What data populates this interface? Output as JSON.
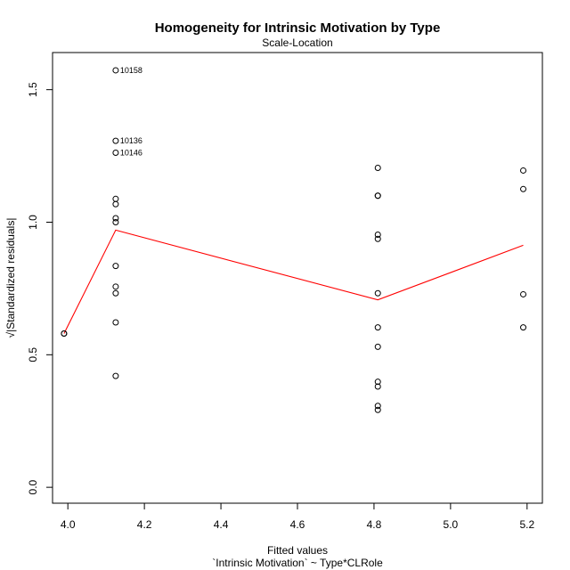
{
  "chart_data": {
    "type": "scatter",
    "title": "Homogeneity for Intrinsic Motivation by Type",
    "subtitle": "Scale-Location",
    "xlabel": "Fitted values",
    "xlabel2": "`Intrinsic Motivation` ~ Type*CLRole",
    "ylabel": "√|Standardized residuals|",
    "xlim": [
      3.96,
      5.24
    ],
    "ylim": [
      -0.06,
      1.64
    ],
    "xticks": [
      "4.0",
      "4.2",
      "4.4",
      "4.6",
      "4.8",
      "5.0",
      "5.2"
    ],
    "yticks": [
      "0.0",
      "0.5",
      "1.0",
      "1.5"
    ],
    "grid": false,
    "colors": {
      "points": "#000000",
      "smooth": "#ff0000"
    },
    "points": [
      {
        "x": 3.99,
        "y": 0.58
      },
      {
        "x": 3.99,
        "y": 0.58
      },
      {
        "x": 4.125,
        "y": 1.573,
        "label": "10158"
      },
      {
        "x": 4.125,
        "y": 1.307,
        "label": "10136"
      },
      {
        "x": 4.125,
        "y": 1.262,
        "label": "10146"
      },
      {
        "x": 4.125,
        "y": 1.088
      },
      {
        "x": 4.125,
        "y": 1.068
      },
      {
        "x": 4.125,
        "y": 1.015
      },
      {
        "x": 4.125,
        "y": 1.0
      },
      {
        "x": 4.125,
        "y": 0.835
      },
      {
        "x": 4.125,
        "y": 0.757
      },
      {
        "x": 4.125,
        "y": 0.732
      },
      {
        "x": 4.125,
        "y": 0.622
      },
      {
        "x": 4.125,
        "y": 0.42
      },
      {
        "x": 4.81,
        "y": 1.205
      },
      {
        "x": 4.81,
        "y": 1.1
      },
      {
        "x": 4.81,
        "y": 1.1
      },
      {
        "x": 4.81,
        "y": 0.953
      },
      {
        "x": 4.81,
        "y": 0.937
      },
      {
        "x": 4.81,
        "y": 0.732
      },
      {
        "x": 4.81,
        "y": 0.603
      },
      {
        "x": 4.81,
        "y": 0.53
      },
      {
        "x": 4.81,
        "y": 0.398
      },
      {
        "x": 4.81,
        "y": 0.38
      },
      {
        "x": 4.81,
        "y": 0.307
      },
      {
        "x": 4.81,
        "y": 0.292
      },
      {
        "x": 5.19,
        "y": 1.195
      },
      {
        "x": 5.19,
        "y": 1.125
      },
      {
        "x": 5.19,
        "y": 0.728
      },
      {
        "x": 5.19,
        "y": 0.603
      }
    ],
    "smooth_line": [
      {
        "x": 3.99,
        "y": 0.58
      },
      {
        "x": 4.125,
        "y": 0.97
      },
      {
        "x": 4.81,
        "y": 0.707
      },
      {
        "x": 5.19,
        "y": 0.913
      }
    ]
  }
}
